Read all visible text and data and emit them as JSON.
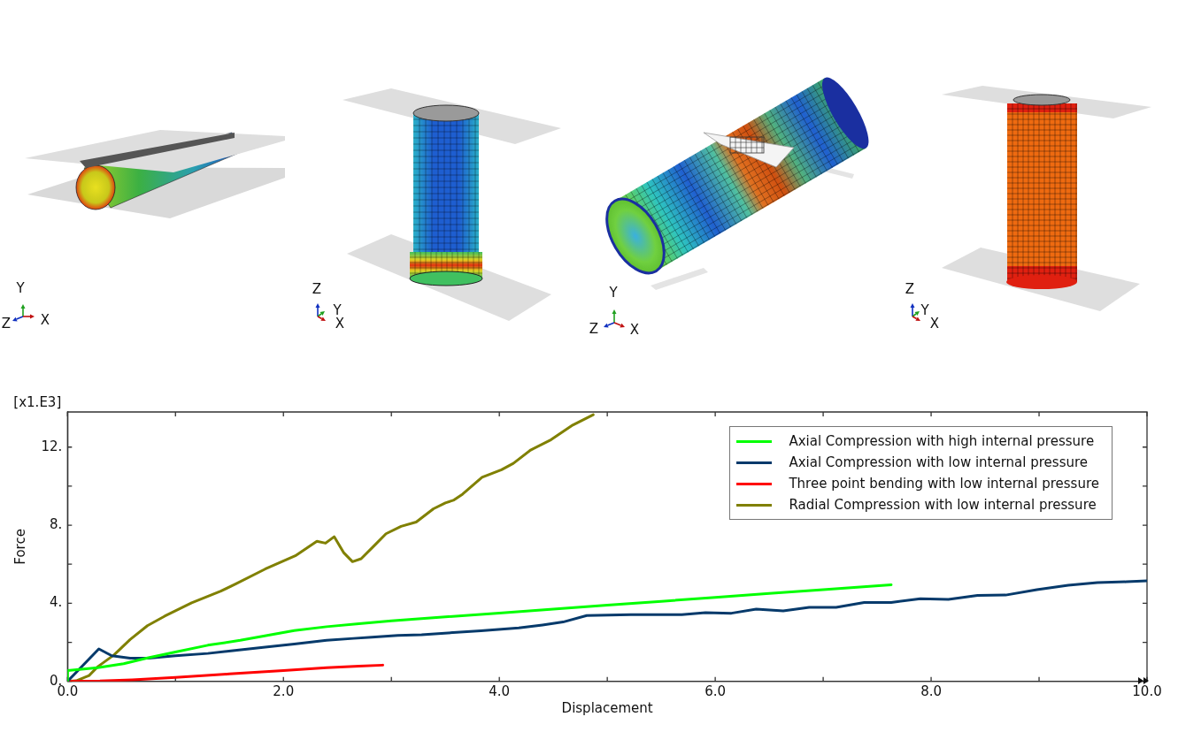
{
  "chart_data": {
    "type": "line",
    "xlabel": "Displacement",
    "ylabel": "Force",
    "annotations": [
      "Y",
      "Z",
      "X",
      "Z",
      "Y",
      "X",
      "Y",
      "Z",
      "X",
      "Z",
      "Y",
      "X",
      "[x1.E3]"
    ],
    "xlim": [
      0,
      10
    ],
    "ylim": [
      0,
      13.8
    ],
    "xticks": [
      {
        "value": 0,
        "label": "0.0"
      },
      {
        "value": 1,
        "label": null
      },
      {
        "value": 2,
        "label": "2.0"
      },
      {
        "value": 3,
        "label": null
      },
      {
        "value": 4,
        "label": "4.0"
      },
      {
        "value": 5,
        "label": null
      },
      {
        "value": 6,
        "label": "6.0"
      },
      {
        "value": 7,
        "label": null
      },
      {
        "value": 8,
        "label": "8.0"
      },
      {
        "value": 9,
        "label": null
      },
      {
        "value": 10,
        "label": "10.0"
      }
    ],
    "yticks": [
      {
        "value": 0,
        "label": "0."
      },
      {
        "value": 2,
        "label": null
      },
      {
        "value": 4,
        "label": "4."
      },
      {
        "value": 6,
        "label": null
      },
      {
        "value": 8,
        "label": "8."
      },
      {
        "value": 10,
        "label": null
      },
      {
        "value": 12,
        "label": "12."
      }
    ],
    "legend": "top right",
    "series": [
      {
        "name": "Axial Compression with high internal pressure",
        "color": "#00ff00",
        "x": [
          0,
          0,
          0.28,
          0.52,
          0.74,
          1.0,
          1.3,
          1.6,
          1.85,
          2.1,
          2.4,
          2.7,
          3.0,
          3.5,
          4.0,
          4.5,
          5.0,
          5.5,
          6.0,
          6.5,
          7.0,
          7.63
        ],
        "values": [
          0,
          0.55,
          0.7,
          0.9,
          1.2,
          1.5,
          1.85,
          2.1,
          2.35,
          2.6,
          2.8,
          2.95,
          3.1,
          3.3,
          3.5,
          3.7,
          3.9,
          4.1,
          4.3,
          4.5,
          4.7,
          4.95
        ]
      },
      {
        "name": "Axial Compression with low internal pressure",
        "color": "#063a6b",
        "x": [
          0,
          0.29,
          0.41,
          0.58,
          0.75,
          1.0,
          1.3,
          1.55,
          1.85,
          2.1,
          2.4,
          2.65,
          2.82,
          3.06,
          3.28,
          3.83,
          4.18,
          4.4,
          4.59,
          4.81,
          5.22,
          5.69,
          5.91,
          6.15,
          6.38,
          6.63,
          6.87,
          7.12,
          7.38,
          7.63,
          7.9,
          8.16,
          8.43,
          8.69,
          8.98,
          9.27,
          9.54,
          9.81,
          10
        ],
        "values": [
          0,
          1.66,
          1.31,
          1.19,
          1.19,
          1.31,
          1.43,
          1.58,
          1.76,
          1.91,
          2.1,
          2.2,
          2.26,
          2.35,
          2.39,
          2.59,
          2.74,
          2.89,
          3.04,
          3.37,
          3.42,
          3.42,
          3.52,
          3.49,
          3.7,
          3.61,
          3.79,
          3.79,
          4.04,
          4.04,
          4.23,
          4.2,
          4.4,
          4.42,
          4.7,
          4.92,
          5.06,
          5.1,
          5.15
        ]
      },
      {
        "name": "Three point bending with low internal pressure",
        "color": "#ff0000",
        "x": [
          0,
          0.3,
          0.6,
          1.0,
          1.5,
          2.0,
          2.4,
          2.7,
          2.92
        ],
        "values": [
          0,
          0.02,
          0.08,
          0.2,
          0.38,
          0.55,
          0.7,
          0.78,
          0.83
        ]
      },
      {
        "name": "Radial Compression with low internal pressure",
        "color": "#808000",
        "x": [
          0,
          0.08,
          0.2,
          0.28,
          0.43,
          0.58,
          0.74,
          0.9,
          1.15,
          1.42,
          1.56,
          1.83,
          2.11,
          2.31,
          2.39,
          2.47,
          2.56,
          2.64,
          2.72,
          2.85,
          2.95,
          3.09,
          3.23,
          3.39,
          3.5,
          3.58,
          3.66,
          3.84,
          4.02,
          4.13,
          4.29,
          4.48,
          4.68,
          4.87
        ],
        "values": [
          0,
          0.03,
          0.3,
          0.75,
          1.35,
          2.14,
          2.85,
          3.34,
          4.02,
          4.62,
          5.0,
          5.75,
          6.43,
          7.18,
          7.08,
          7.41,
          6.58,
          6.13,
          6.28,
          7.0,
          7.56,
          7.94,
          8.16,
          8.84,
          9.14,
          9.29,
          9.59,
          10.45,
          10.84,
          11.17,
          11.85,
          12.38,
          13.13,
          13.66
        ]
      }
    ]
  }
}
